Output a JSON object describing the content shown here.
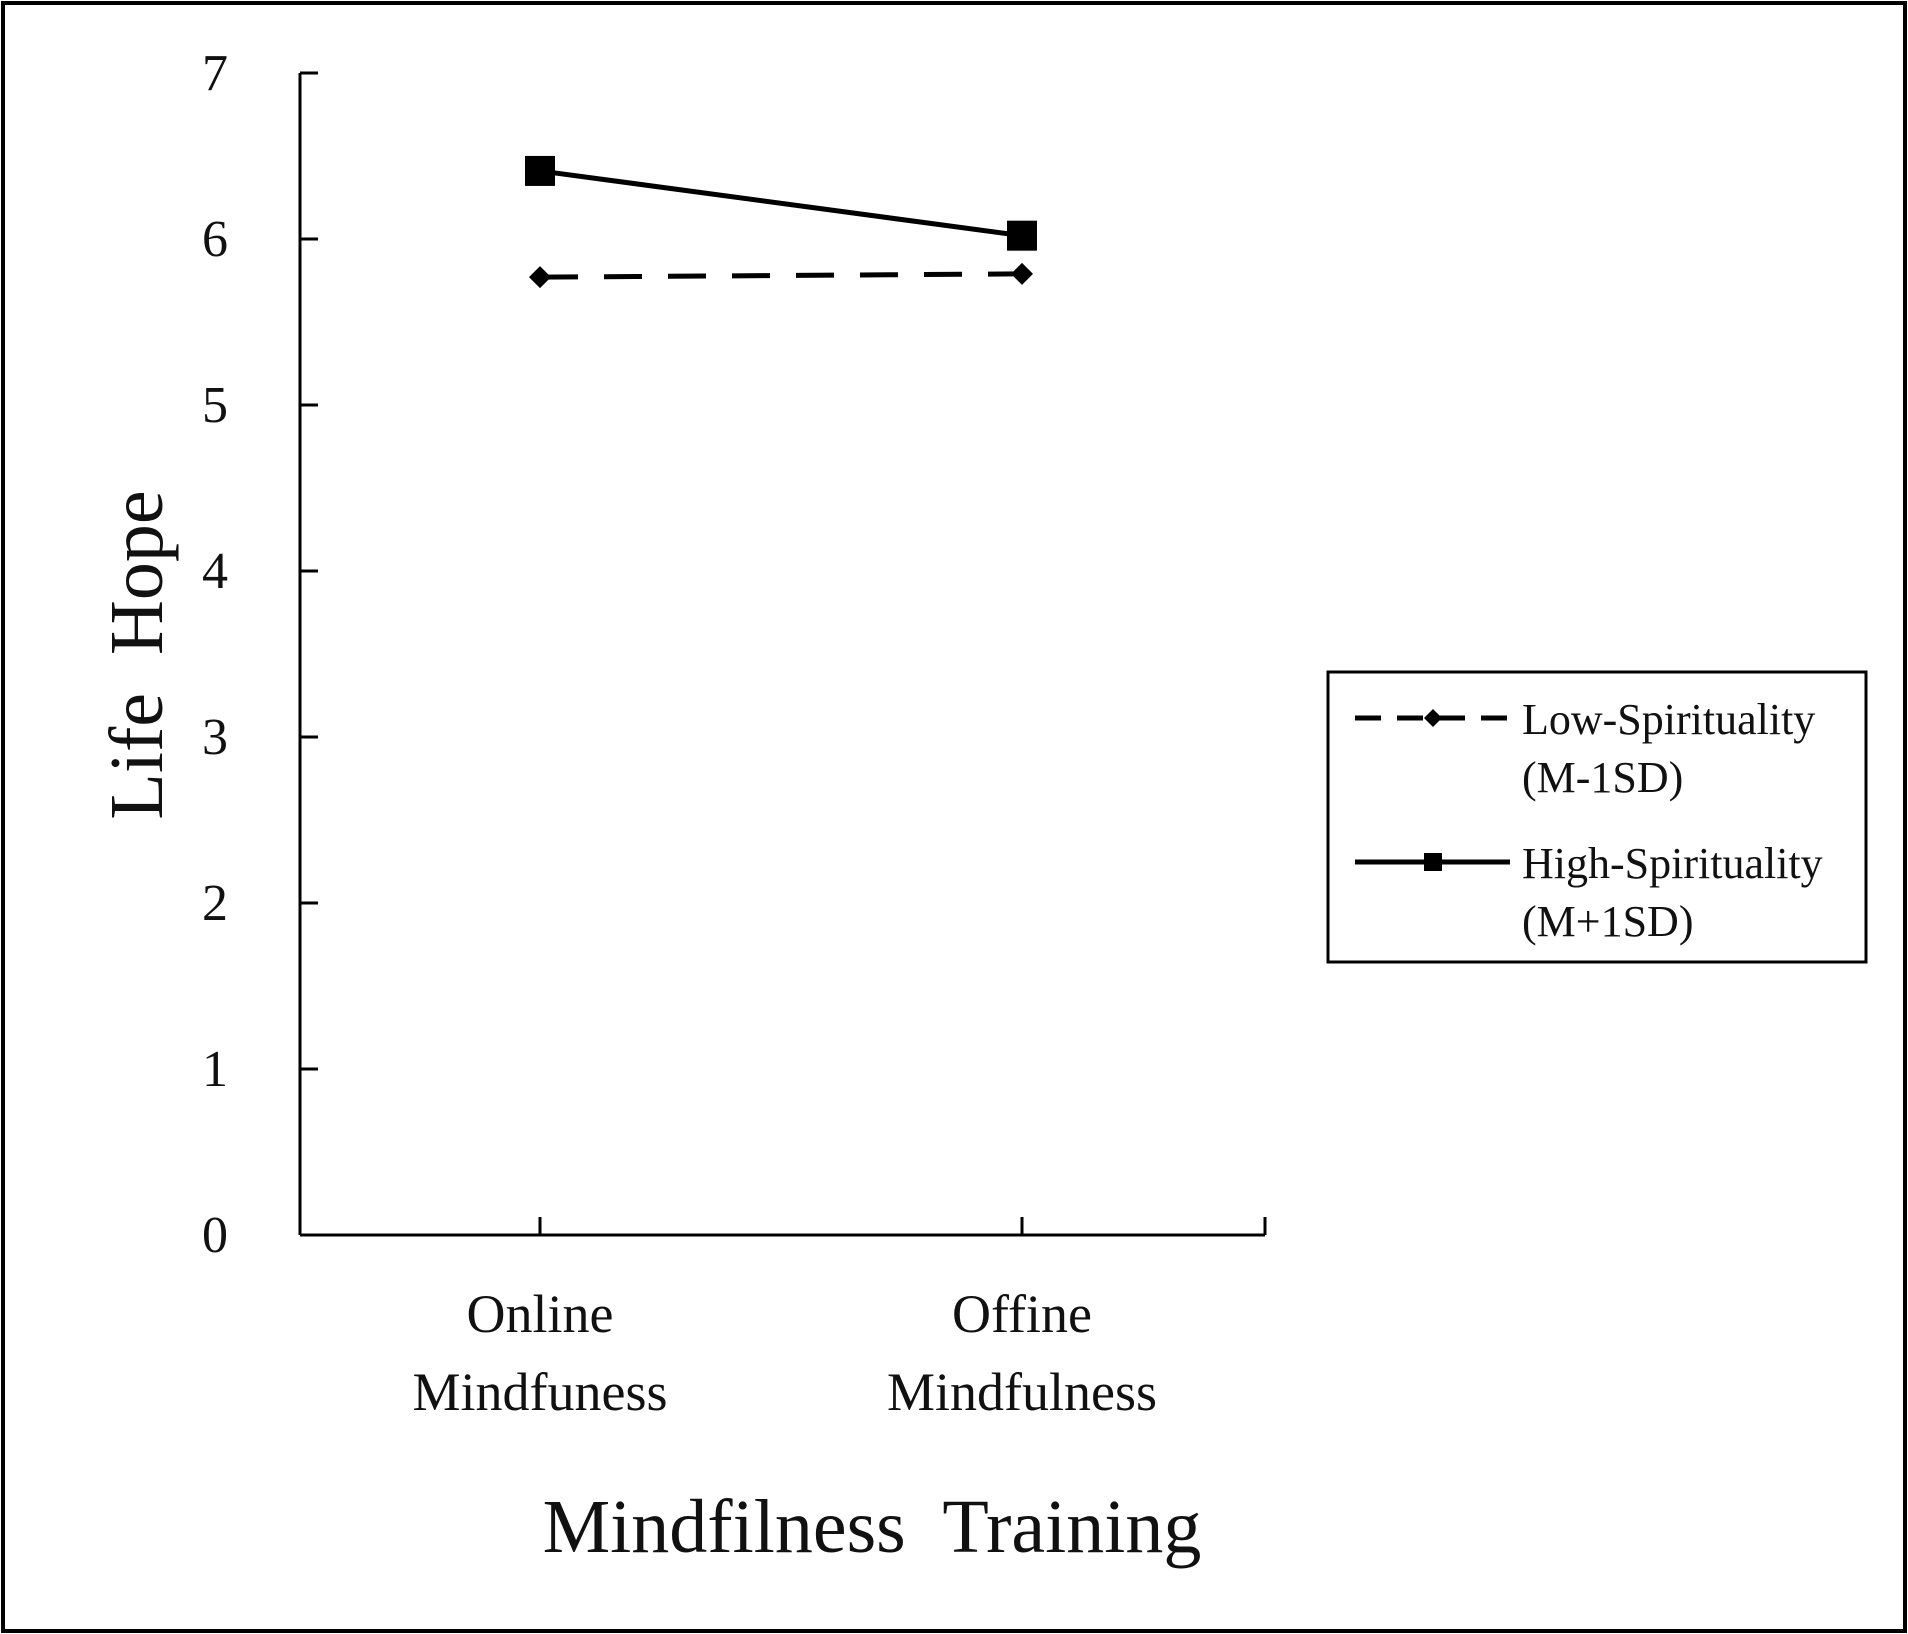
{
  "chart_data": {
    "type": "line",
    "categories": [
      "Online\nMindfuness",
      "Offine\nMindfulness"
    ],
    "series": [
      {
        "name": "Low-Spirituality\n(M-1SD)",
        "values": [
          5.77,
          5.79
        ],
        "style": "dashed",
        "marker": "diamond"
      },
      {
        "name": "High-Spirituality\n(M+1SD)",
        "values": [
          6.41,
          6.02
        ],
        "style": "solid",
        "marker": "square"
      }
    ],
    "xlabel": "Mindfilness  Training",
    "ylabel": "Life  Hope",
    "ylim": [
      0,
      7
    ],
    "yticks": [
      0,
      1,
      2,
      3,
      4,
      5,
      6,
      7
    ],
    "grid": false,
    "legend_position": "right",
    "colors": {
      "line": "#000000",
      "text": "#111111",
      "frame": "#000000",
      "background": "#ffffff"
    }
  }
}
